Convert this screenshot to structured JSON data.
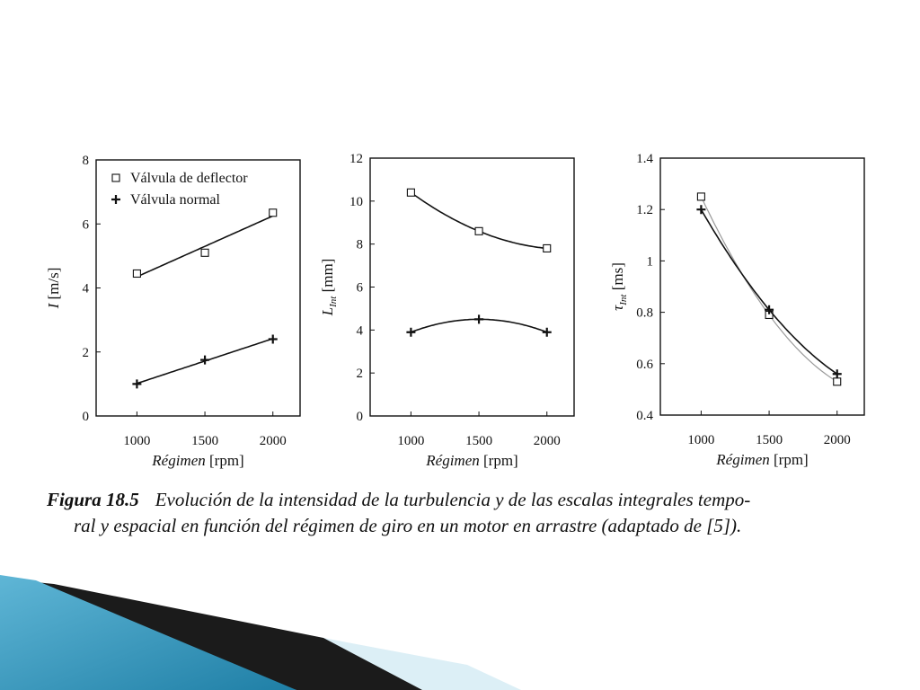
{
  "chart_data": [
    {
      "type": "line",
      "x": [
        1000,
        1500,
        2000
      ],
      "xlim": [
        700,
        2200
      ],
      "xticks": [
        1000,
        1500,
        2000
      ],
      "ylim": [
        0,
        8
      ],
      "yticks": [
        0,
        2,
        4,
        6,
        8
      ],
      "xlabel_italic": "Régimen",
      "xlabel_unit": "[rpm]",
      "ylabel_symbol": "I",
      "ylabel_unit": "[m/s]",
      "legend": "top-left",
      "series": [
        {
          "name": "Válvula de deflector",
          "marker": "square",
          "values": [
            4.45,
            5.1,
            6.35
          ],
          "fit": "linear"
        },
        {
          "name": "Válvula normal",
          "marker": "plus",
          "values": [
            1.0,
            1.75,
            2.4
          ],
          "fit": "linear"
        }
      ]
    },
    {
      "type": "line",
      "x": [
        1000,
        1500,
        2000
      ],
      "xlim": [
        700,
        2200
      ],
      "xticks": [
        1000,
        1500,
        2000
      ],
      "ylim": [
        0,
        12
      ],
      "yticks": [
        0,
        2,
        4,
        6,
        8,
        10,
        12
      ],
      "xlabel_italic": "Régimen",
      "xlabel_unit": "[rpm]",
      "ylabel_symbol": "L",
      "ylabel_sub": "Int",
      "ylabel_unit": "[mm]",
      "series": [
        {
          "marker": "square",
          "values": [
            10.4,
            8.6,
            7.8
          ],
          "fit": "quadratic"
        },
        {
          "marker": "plus",
          "values": [
            3.9,
            4.5,
            3.9
          ],
          "fit": "quadratic"
        }
      ]
    },
    {
      "type": "line",
      "x": [
        1000,
        1500,
        2000
      ],
      "xlim": [
        700,
        2200
      ],
      "xticks": [
        1000,
        1500,
        2000
      ],
      "ylim": [
        0.4,
        1.4
      ],
      "yticks": [
        0.4,
        0.6,
        0.8,
        1,
        1.2,
        1.4
      ],
      "ytick_labels": [
        "0.4",
        "0.6",
        "0.8",
        "1",
        "1.2",
        "1.4"
      ],
      "xlabel_italic": "Régimen",
      "xlabel_unit": "[rpm]",
      "ylabel_symbol": "τ",
      "ylabel_sub": "Int",
      "ylabel_unit": "[ms]",
      "series": [
        {
          "marker": "square",
          "values": [
            1.25,
            0.79,
            0.53
          ],
          "fit": "quadratic",
          "style": "light"
        },
        {
          "marker": "plus",
          "values": [
            1.2,
            0.81,
            0.56
          ],
          "fit": "quadratic"
        }
      ]
    }
  ],
  "caption": {
    "figure_label": "Figura 18.5",
    "line1": "Evolución de la intensidad de la turbulencia y de las escalas integrales tempo-",
    "line2": "ral y espacial en función del régimen de giro en un motor en arrastre (adaptado de [5])."
  },
  "colors": {
    "ink": "#111111",
    "light_ink": "#9a9a9a",
    "deco_blue": "#2f93b8",
    "deco_light": "#d8eef6",
    "deco_dark": "#1b1b1b"
  }
}
